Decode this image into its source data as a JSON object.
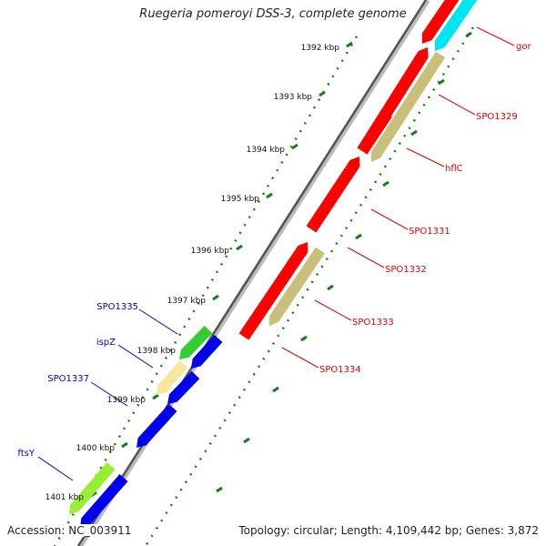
{
  "title": "Ruegeria pomeroyi DSS-3, complete genome",
  "accession": "Accession: NC_003911",
  "topology": "Topology: circular; Length: 4,109,442 bp; Genes: 3,872",
  "ruler_ticks": [
    "1392 kbp",
    "1393 kbp",
    "1394 kbp",
    "1395 kbp",
    "1396 kbp",
    "1397 kbp",
    "1398 kbp",
    "1399 kbp",
    "1400 kbp",
    "1401 kbp"
  ],
  "gene_labels": [
    {
      "name": "gor",
      "strand": "forward",
      "color": "#e00000"
    },
    {
      "name": "SPO1329",
      "strand": "forward",
      "color": "#e00000"
    },
    {
      "name": "hflC",
      "strand": "forward",
      "color": "#e00000"
    },
    {
      "name": "SPO1331",
      "strand": "forward",
      "color": "#e00000"
    },
    {
      "name": "SPO1332",
      "strand": "forward",
      "color": "#e00000"
    },
    {
      "name": "SPO1333",
      "strand": "forward",
      "color": "#e00000"
    },
    {
      "name": "SPO1334",
      "strand": "forward",
      "color": "#e00000"
    },
    {
      "name": "SPO1335",
      "strand": "reverse",
      "color": "#0000cc"
    },
    {
      "name": "ispZ",
      "strand": "reverse",
      "color": "#0000cc"
    },
    {
      "name": "SPO1337",
      "strand": "reverse",
      "color": "#0000cc"
    },
    {
      "name": "ftsY",
      "strand": "reverse",
      "color": "#0000cc"
    }
  ],
  "colors": {
    "forward_cds": "#ff0000",
    "forward_alt": "#00e5ee",
    "reverse_cds": "#0000ee",
    "rrna_like": "#c8c07a",
    "pale_feature": "#f5e6a0",
    "green_feature": "#33cc33",
    "lime_feature": "#99ee33",
    "backbone": "#555555",
    "tick_dots": "#1a7a1a"
  }
}
